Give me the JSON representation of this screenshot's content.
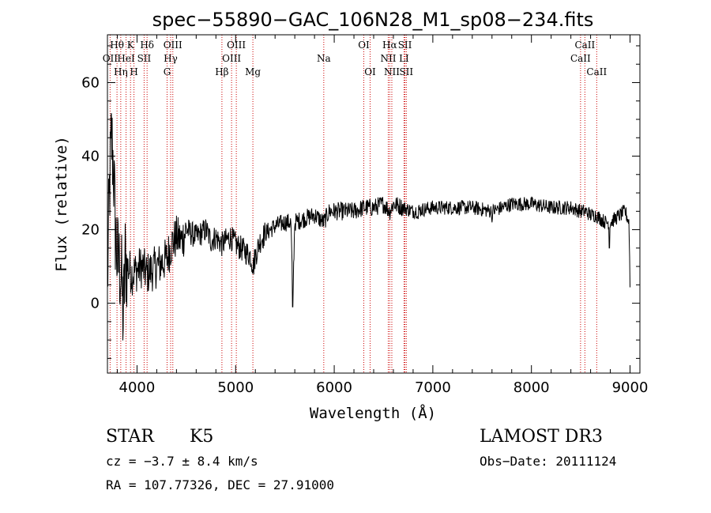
{
  "chart_data": {
    "type": "line",
    "title": "spec−55890−GAC_106N28_M1_sp08−234.fits",
    "xlabel": "Wavelength (Å)",
    "ylabel": "Flux (relative)",
    "xlim": [
      3700,
      9100
    ],
    "ylim": [
      -19,
      73
    ],
    "x_ticks": [
      4000,
      5000,
      6000,
      7000,
      8000,
      9000
    ],
    "y_ticks": [
      0,
      20,
      40,
      60
    ],
    "series": [
      {
        "name": "spectrum",
        "anchors": [
          [
            3700,
            5
          ],
          [
            3720,
            30
          ],
          [
            3740,
            45
          ],
          [
            3760,
            38
          ],
          [
            3780,
            20
          ],
          [
            3800,
            12
          ],
          [
            3820,
            10
          ],
          [
            3840,
            8
          ],
          [
            3860,
            -5
          ],
          [
            3880,
            12
          ],
          [
            3900,
            10
          ],
          [
            3950,
            8
          ],
          [
            4000,
            9
          ],
          [
            4050,
            10
          ],
          [
            4100,
            8
          ],
          [
            4150,
            9
          ],
          [
            4200,
            10
          ],
          [
            4250,
            11
          ],
          [
            4300,
            12
          ],
          [
            4350,
            16
          ],
          [
            4400,
            18
          ],
          [
            4450,
            17
          ],
          [
            4500,
            20
          ],
          [
            4550,
            19
          ],
          [
            4600,
            18
          ],
          [
            4650,
            19
          ],
          [
            4700,
            20
          ],
          [
            4750,
            17
          ],
          [
            4800,
            18
          ],
          [
            4860,
            16
          ],
          [
            4900,
            17
          ],
          [
            4950,
            18
          ],
          [
            5000,
            16
          ],
          [
            5050,
            15
          ],
          [
            5100,
            14
          ],
          [
            5150,
            13
          ],
          [
            5180,
            10
          ],
          [
            5200,
            13
          ],
          [
            5250,
            17
          ],
          [
            5300,
            19
          ],
          [
            5400,
            21
          ],
          [
            5500,
            22
          ],
          [
            5560,
            22
          ],
          [
            5580,
            2
          ],
          [
            5600,
            22
          ],
          [
            5700,
            23
          ],
          [
            5800,
            24
          ],
          [
            5893,
            22
          ],
          [
            5950,
            25
          ],
          [
            6000,
            25
          ],
          [
            6100,
            25
          ],
          [
            6200,
            25
          ],
          [
            6300,
            26
          ],
          [
            6400,
            26
          ],
          [
            6500,
            27
          ],
          [
            6563,
            25
          ],
          [
            6600,
            27
          ],
          [
            6700,
            26
          ],
          [
            6800,
            25
          ],
          [
            7000,
            26
          ],
          [
            7200,
            26
          ],
          [
            7400,
            26
          ],
          [
            7600,
            25
          ],
          [
            7800,
            27
          ],
          [
            8000,
            27
          ],
          [
            8200,
            26
          ],
          [
            8400,
            26
          ],
          [
            8500,
            25
          ],
          [
            8550,
            25
          ],
          [
            8600,
            24
          ],
          [
            8650,
            24
          ],
          [
            8700,
            23
          ],
          [
            8750,
            22
          ],
          [
            8800,
            22
          ],
          [
            8850,
            23
          ],
          [
            8900,
            24
          ],
          [
            8950,
            25
          ],
          [
            8990,
            22
          ],
          [
            9000,
            5
          ]
        ],
        "spikes": [
          [
            5577,
            -1
          ],
          [
            6850,
            23
          ],
          [
            7600,
            22
          ],
          [
            8790,
            15
          ]
        ]
      }
    ],
    "reference_lines": [
      {
        "label": "OΙΙ",
        "wavelength": 3727,
        "row": 2
      },
      {
        "label": "Ηθ",
        "wavelength": 3797,
        "row": 1
      },
      {
        "label": "Ηη",
        "wavelength": 3835,
        "row": 3
      },
      {
        "label": "ΗeΙ",
        "wavelength": 3889,
        "row": 2
      },
      {
        "label": "K",
        "wavelength": 3934,
        "row": 1
      },
      {
        "label": "H",
        "wavelength": 3969,
        "row": 3
      },
      {
        "label": "SΙΙ",
        "wavelength": 4072,
        "row": 2
      },
      {
        "label": "Hδ",
        "wavelength": 4102,
        "row": 1
      },
      {
        "label": "G",
        "wavelength": 4305,
        "row": 3
      },
      {
        "label": "Hγ",
        "wavelength": 4341,
        "row": 2
      },
      {
        "label": "OΙΙΙ",
        "wavelength": 4363,
        "row": 1
      },
      {
        "label": "Hβ",
        "wavelength": 4861,
        "row": 3
      },
      {
        "label": "OΙΙΙ",
        "wavelength": 4959,
        "row": 2
      },
      {
        "label": "OΙΙΙ",
        "wavelength": 5007,
        "row": 1
      },
      {
        "label": "Mg",
        "wavelength": 5175,
        "row": 3
      },
      {
        "label": "Na",
        "wavelength": 5894,
        "row": 2
      },
      {
        "label": "OΙ",
        "wavelength": 6300,
        "row": 1
      },
      {
        "label": "OΙ",
        "wavelength": 6364,
        "row": 3
      },
      {
        "label": "NΙΙ",
        "wavelength": 6548,
        "row": 2
      },
      {
        "label": "Hα",
        "wavelength": 6563,
        "row": 1
      },
      {
        "label": "NΙΙ",
        "wavelength": 6584,
        "row": 3
      },
      {
        "label": "LΙ",
        "wavelength": 6708,
        "row": 2
      },
      {
        "label": "SΙΙ",
        "wavelength": 6717,
        "row": 1
      },
      {
        "label": "SΙΙ",
        "wavelength": 6731,
        "row": 3
      },
      {
        "label": "CaΙΙ",
        "wavelength": 8498,
        "row": 2
      },
      {
        "label": "CaΙΙ",
        "wavelength": 8542,
        "row": 1
      },
      {
        "label": "CaΙΙ",
        "wavelength": 8662,
        "row": 3
      }
    ],
    "line_color": "#000000",
    "reference_line_color": "#cc0000"
  },
  "info": {
    "class": "STAR",
    "subclass": "K5",
    "survey": "LAMOST DR3",
    "redshift": "cz = −3.7 ± 8.4 km/s",
    "obs_date": "Obs−Date: 20111124",
    "coordinates": "RA = 107.77326, DEC =  27.91000"
  }
}
